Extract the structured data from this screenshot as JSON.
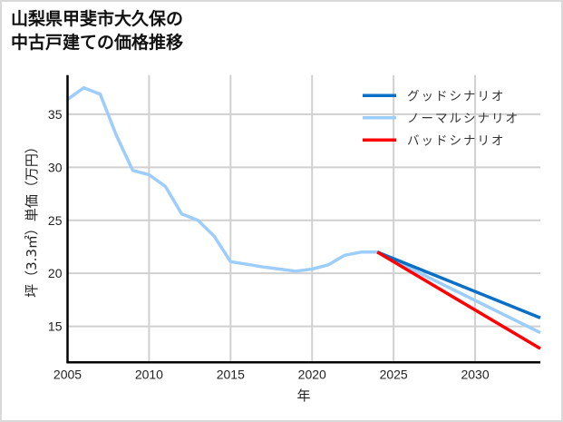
{
  "title": {
    "line1": "山梨県甲斐市大久保の",
    "line2": "中古戸建ての価格推移"
  },
  "colors": {
    "good": "#0a6fc6",
    "normal": "#9dcdfb",
    "bad": "#ff0000",
    "grid": "#d0d0d0",
    "axis": "#000000"
  },
  "chart_data": {
    "type": "line",
    "title": "山梨県甲斐市大久保の中古戸建ての価格推移",
    "xlabel": "年",
    "ylabel": "坪（3.3㎡）単価（万円）",
    "xlim": [
      2005,
      2034
    ],
    "ylim": [
      11.6,
      38.7
    ],
    "xticks": [
      2005,
      2010,
      2015,
      2020,
      2025,
      2030
    ],
    "yticks": [
      15,
      20,
      25,
      30,
      35
    ],
    "grid": true,
    "legend_position": "upper right",
    "series": [
      {
        "name": "グッドシナリオ",
        "color": "#0a6fc6",
        "x": [
          2024,
          2034
        ],
        "values": [
          22.0,
          15.8
        ]
      },
      {
        "name": "ノーマルシナリオ",
        "color": "#9dcdfb",
        "x": [
          2005,
          2006,
          2007,
          2008,
          2009,
          2010,
          2011,
          2012,
          2013,
          2014,
          2015,
          2016,
          2017,
          2018,
          2019,
          2020,
          2021,
          2022,
          2023,
          2024,
          2034
        ],
        "values": [
          36.4,
          37.5,
          36.9,
          33.0,
          29.7,
          29.3,
          28.2,
          25.6,
          25.0,
          23.5,
          21.1,
          20.85,
          20.6,
          20.4,
          20.2,
          20.4,
          20.8,
          21.7,
          22.0,
          22.0,
          14.4
        ]
      },
      {
        "name": "バッドシナリオ",
        "color": "#ff0000",
        "x": [
          2024,
          2034
        ],
        "values": [
          22.0,
          12.9
        ]
      }
    ]
  }
}
